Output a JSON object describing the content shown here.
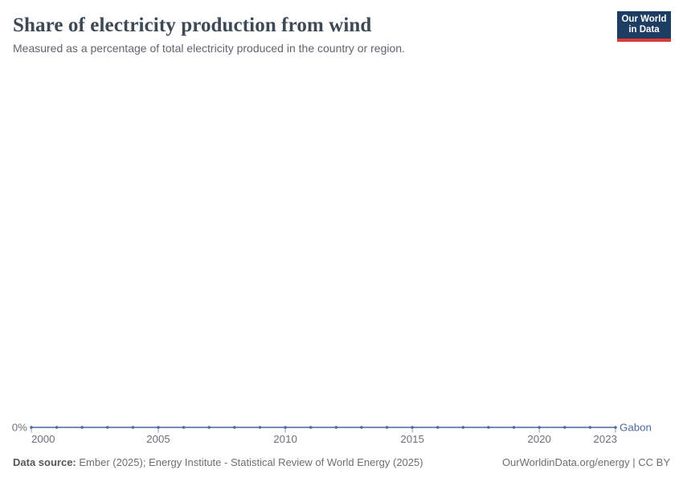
{
  "header": {
    "title": "Share of electricity production from wind",
    "subtitle": "Measured as a percentage of total electricity produced in the country or region."
  },
  "logo": {
    "line1": "Our World",
    "line2": "in Data",
    "bg_color": "#1d3d63",
    "bar_color": "#d93a34"
  },
  "chart_data": {
    "type": "line",
    "title": "Share of electricity production from wind",
    "subtitle": "Measured as a percentage of total electricity produced in the country or region.",
    "x": [
      2000,
      2001,
      2002,
      2003,
      2004,
      2005,
      2006,
      2007,
      2008,
      2009,
      2010,
      2011,
      2012,
      2013,
      2014,
      2015,
      2016,
      2017,
      2018,
      2019,
      2020,
      2021,
      2022,
      2023
    ],
    "series": [
      {
        "name": "Gabon",
        "color": "#4C6A9C",
        "values": [
          0,
          0,
          0,
          0,
          0,
          0,
          0,
          0,
          0,
          0,
          0,
          0,
          0,
          0,
          0,
          0,
          0,
          0,
          0,
          0,
          0,
          0,
          0,
          0
        ]
      }
    ],
    "x_ticks": [
      2000,
      2005,
      2010,
      2015,
      2020,
      2023
    ],
    "y_ticks": [
      {
        "value": 0,
        "label": "0%"
      }
    ],
    "xlim": [
      2000,
      2023
    ],
    "ylim": [
      0,
      1
    ],
    "unit": "%",
    "grid": false,
    "legend_position": "end-of-line",
    "axis_text_color": "#6e7079",
    "tick_mark_color": "#8e9bac",
    "marker": "dot"
  },
  "footer": {
    "source_label": "Data source:",
    "source_text": " Ember (2025); Energy Institute - Statistical Review of World Energy (2025)",
    "right_text": "OurWorldinData.org/energy | CC BY"
  }
}
